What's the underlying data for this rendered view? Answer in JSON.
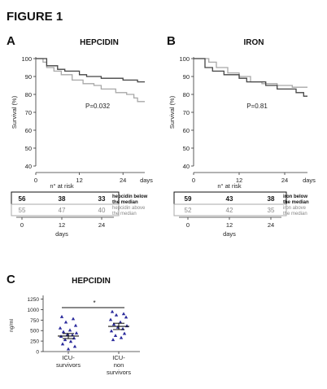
{
  "figure_title": "FIGURE 1",
  "chart_data": [
    {
      "type": "line",
      "panel": "A",
      "title": "HEPCIDIN",
      "xlabel": "days",
      "ylabel": "Survival (%)",
      "xticks": [
        0,
        12,
        24
      ],
      "yticks": [
        40,
        50,
        60,
        70,
        80,
        90,
        100
      ],
      "xlim": [
        0,
        30
      ],
      "ylim": [
        40,
        100
      ],
      "annotation": "P=0.032",
      "series": [
        {
          "name": "hepcidin below the median",
          "color": "#444444",
          "points": [
            [
              0,
              100
            ],
            [
              3,
              100
            ],
            [
              3,
              96
            ],
            [
              6,
              96
            ],
            [
              6,
              94
            ],
            [
              8,
              94
            ],
            [
              8,
              93
            ],
            [
              12,
              93
            ],
            [
              12,
              91
            ],
            [
              14,
              91
            ],
            [
              14,
              90
            ],
            [
              18,
              90
            ],
            [
              18,
              89
            ],
            [
              24,
              89
            ],
            [
              24,
              88
            ],
            [
              28,
              88
            ],
            [
              28,
              87
            ],
            [
              30,
              87
            ]
          ]
        },
        {
          "name": "hepcidin above the median",
          "color": "#a8a8a8",
          "points": [
            [
              0,
              100
            ],
            [
              2,
              100
            ],
            [
              2,
              98
            ],
            [
              3,
              98
            ],
            [
              3,
              95
            ],
            [
              5,
              95
            ],
            [
              5,
              93
            ],
            [
              7,
              93
            ],
            [
              7,
              91
            ],
            [
              10,
              91
            ],
            [
              10,
              88
            ],
            [
              13,
              88
            ],
            [
              13,
              86
            ],
            [
              16,
              86
            ],
            [
              16,
              85
            ],
            [
              18,
              85
            ],
            [
              18,
              83
            ],
            [
              22,
              83
            ],
            [
              22,
              81
            ],
            [
              25,
              81
            ],
            [
              25,
              80
            ],
            [
              27,
              80
            ],
            [
              27,
              78
            ],
            [
              28,
              78
            ],
            [
              28,
              76
            ],
            [
              30,
              76
            ]
          ]
        }
      ]
    },
    {
      "type": "line",
      "panel": "B",
      "title": "IRON",
      "xlabel": "days",
      "ylabel": "Survival (%)",
      "xticks": [
        0,
        12,
        24
      ],
      "yticks": [
        40,
        50,
        60,
        70,
        80,
        90,
        100
      ],
      "xlim": [
        0,
        30
      ],
      "ylim": [
        40,
        100
      ],
      "annotation": "P=0.81",
      "series": [
        {
          "name": "iron below the median",
          "color": "#444444",
          "points": [
            [
              0,
              100
            ],
            [
              3,
              100
            ],
            [
              3,
              95
            ],
            [
              5,
              95
            ],
            [
              5,
              93
            ],
            [
              8,
              93
            ],
            [
              8,
              91
            ],
            [
              12,
              91
            ],
            [
              12,
              89
            ],
            [
              14,
              89
            ],
            [
              14,
              87
            ],
            [
              19,
              87
            ],
            [
              19,
              85
            ],
            [
              22,
              85
            ],
            [
              22,
              83
            ],
            [
              27,
              83
            ],
            [
              27,
              81
            ],
            [
              29,
              81
            ],
            [
              29,
              79
            ],
            [
              30,
              79
            ]
          ]
        },
        {
          "name": "iron above the median",
          "color": "#a8a8a8",
          "points": [
            [
              0,
              100
            ],
            [
              4,
              100
            ],
            [
              4,
              98
            ],
            [
              6,
              98
            ],
            [
              6,
              95
            ],
            [
              9,
              95
            ],
            [
              9,
              92
            ],
            [
              12,
              92
            ],
            [
              12,
              90
            ],
            [
              15,
              90
            ],
            [
              15,
              87
            ],
            [
              18,
              87
            ],
            [
              18,
              86
            ],
            [
              22,
              86
            ],
            [
              22,
              85
            ],
            [
              26,
              85
            ],
            [
              26,
              84
            ],
            [
              30,
              84
            ]
          ]
        }
      ]
    },
    {
      "type": "scatter",
      "panel": "C",
      "title": "HEPCIDIN",
      "ylabel": "ng/ml",
      "yticks": [
        0,
        250,
        500,
        750,
        1000,
        1250
      ],
      "ylim": [
        0,
        1300
      ],
      "categories": [
        "ICU-survivors",
        "ICU-non survivors"
      ],
      "significance": "*",
      "groups": [
        {
          "category": "ICU-survivors",
          "mean": 370,
          "sem": 60,
          "values": [
            830,
            780,
            700,
            620,
            560,
            510,
            470,
            440,
            410,
            390,
            360,
            320,
            280,
            240,
            180,
            120,
            60
          ]
        },
        {
          "category": "ICU-non survivors",
          "mean": 600,
          "sem": 75,
          "values": [
            950,
            900,
            870,
            820,
            760,
            700,
            650,
            610,
            580,
            540,
            490,
            430,
            380,
            330,
            280
          ]
        }
      ]
    }
  ],
  "risk_tables": [
    {
      "caption": "n° at risk",
      "xlabel": "days",
      "xticks": [
        "0",
        "12",
        "24"
      ],
      "rows": [
        {
          "values": [
            "56",
            "38",
            "33"
          ],
          "label": "hepcidin below the median",
          "label_lines": [
            "hepcidin below",
            "the median"
          ],
          "bold": true
        },
        {
          "values": [
            "55",
            "47",
            "40"
          ],
          "label": "hepcidin above the median",
          "label_lines": [
            "hepcidin above",
            "the median"
          ],
          "bold": false
        }
      ]
    },
    {
      "caption": "n° at risk",
      "xlabel": "days",
      "xticks": [
        "0",
        "12",
        "24"
      ],
      "rows": [
        {
          "values": [
            "59",
            "43",
            "38"
          ],
          "label": "iron below the median",
          "label_lines": [
            "iron below",
            "the median"
          ],
          "bold": true
        },
        {
          "values": [
            "52",
            "42",
            "35"
          ],
          "label": "iron above the median",
          "label_lines": [
            "iron above",
            "the median"
          ],
          "bold": false
        }
      ]
    }
  ]
}
